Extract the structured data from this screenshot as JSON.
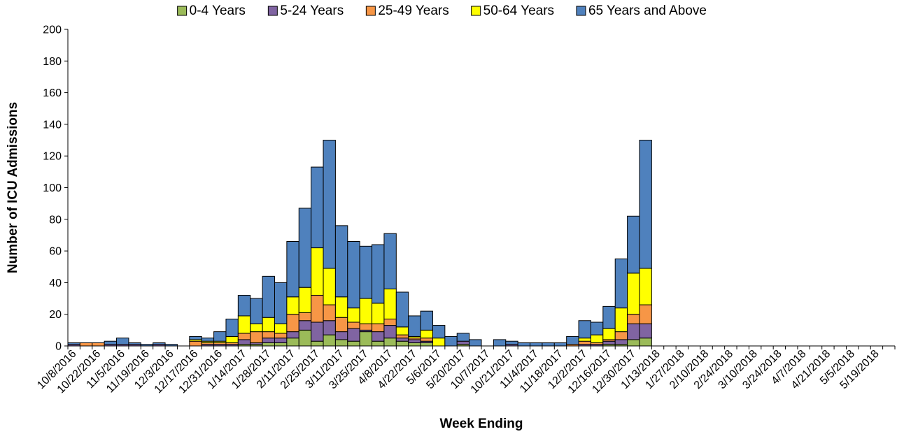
{
  "chart_data": {
    "type": "bar",
    "stacked": true,
    "xlabel": "Week Ending",
    "ylabel": "Number of ICU Admissions",
    "ylim": [
      0,
      200
    ],
    "y_ticks": [
      0,
      20,
      40,
      60,
      80,
      100,
      120,
      140,
      160,
      180,
      200
    ],
    "legend_position": "top",
    "grid": false,
    "categories": [
      "10/8/2016",
      "10/15/2016",
      "10/22/2016",
      "10/29/2016",
      "11/5/2016",
      "11/12/2016",
      "11/19/2016",
      "11/26/2016",
      "12/3/2016",
      "12/10/2016",
      "12/17/2016",
      "12/24/2016",
      "12/31/2016",
      "1/7/2017",
      "1/14/2017",
      "1/21/2017",
      "1/28/2017",
      "2/4/2017",
      "2/11/2017",
      "2/18/2017",
      "2/25/2017",
      "3/4/2017",
      "3/11/2017",
      "3/18/2017",
      "3/25/2017",
      "4/1/2017",
      "4/8/2017",
      "4/15/2017",
      "4/22/2017",
      "4/29/2017",
      "5/6/2017",
      "5/13/2017",
      "5/20/2017",
      "5/27/2017",
      "10/7/2017",
      "10/14/2017",
      "10/21/2017",
      "10/28/2017",
      "11/4/2017",
      "11/11/2017",
      "11/18/2017",
      "11/25/2017",
      "12/2/2017",
      "12/9/2017",
      "12/16/2017",
      "12/23/2017",
      "12/30/2017",
      "1/6/2018",
      "1/13/2018",
      "1/20/2018",
      "1/27/2018",
      "2/3/2018",
      "2/10/2018",
      "2/17/2018",
      "2/24/2018",
      "3/3/2018",
      "3/10/2018",
      "3/17/2018",
      "3/24/2018",
      "3/31/2018",
      "4/7/2018",
      "4/14/2018",
      "4/21/2018",
      "4/28/2018",
      "5/5/2018",
      "5/12/2018",
      "5/19/2018",
      "5/26/2018"
    ],
    "tick_labels": [
      "10/8/2016",
      "10/22/2016",
      "11/5/2016",
      "11/19/2016",
      "12/3/2016",
      "12/17/2016",
      "12/31/2016",
      "1/14/2017",
      "1/28/2017",
      "2/11/2017",
      "2/25/2017",
      "3/11/2017",
      "3/25/2017",
      "4/8/2017",
      "4/22/2017",
      "5/6/2017",
      "5/20/2017",
      "10/7/2017",
      "10/21/2017",
      "11/4/2017",
      "11/18/2017",
      "12/2/2017",
      "12/16/2017",
      "12/30/2017",
      "1/13/2018",
      "1/27/2018",
      "2/10/2018",
      "2/24/2018",
      "3/10/2018",
      "3/24/2018",
      "4/7/2018",
      "4/21/2018",
      "5/5/2018",
      "5/19/2018"
    ],
    "series": [
      {
        "name": "0-4 Years",
        "color": "#9bbb59",
        "values": [
          0,
          0,
          0,
          0,
          0,
          0,
          0,
          0,
          0,
          0,
          0,
          0,
          0,
          0,
          1,
          1,
          2,
          2,
          5,
          10,
          3,
          7,
          4,
          3,
          9,
          3,
          5,
          3,
          2,
          2,
          0,
          0,
          1,
          0,
          0,
          0,
          0,
          0,
          0,
          0,
          0,
          0,
          0,
          0,
          1,
          1,
          4,
          5,
          0,
          0,
          0,
          0,
          0,
          0,
          0,
          0,
          0,
          0,
          0,
          0,
          0,
          0,
          0,
          0,
          0,
          0,
          0,
          0
        ]
      },
      {
        "name": "5-24 Years",
        "color": "#8064a2",
        "values": [
          1,
          0,
          0,
          1,
          1,
          1,
          0,
          1,
          0,
          0,
          0,
          1,
          1,
          1,
          3,
          1,
          3,
          3,
          4,
          6,
          12,
          9,
          5,
          8,
          1,
          6,
          8,
          2,
          2,
          1,
          0,
          0,
          2,
          0,
          0,
          0,
          1,
          0,
          0,
          0,
          0,
          0,
          1,
          1,
          2,
          3,
          10,
          9,
          0,
          0,
          0,
          0,
          0,
          0,
          0,
          0,
          0,
          0,
          0,
          0,
          0,
          0,
          0,
          0,
          0,
          0,
          0,
          0
        ]
      },
      {
        "name": "25-49 Years",
        "color": "#f79646",
        "values": [
          0,
          2,
          2,
          0,
          0,
          0,
          0,
          0,
          0,
          0,
          3,
          1,
          1,
          1,
          4,
          7,
          4,
          3,
          11,
          5,
          17,
          10,
          9,
          4,
          4,
          5,
          4,
          2,
          1,
          2,
          0,
          0,
          0,
          0,
          0,
          0,
          0,
          0,
          0,
          0,
          0,
          1,
          2,
          1,
          1,
          5,
          6,
          12,
          0,
          0,
          0,
          0,
          0,
          0,
          0,
          0,
          0,
          0,
          0,
          0,
          0,
          0,
          0,
          0,
          0,
          0,
          0,
          0
        ]
      },
      {
        "name": "50-64 Years",
        "color": "#ffff00",
        "values": [
          0,
          0,
          0,
          0,
          0,
          0,
          0,
          0,
          0,
          0,
          1,
          1,
          1,
          4,
          11,
          5,
          9,
          6,
          11,
          16,
          30,
          23,
          13,
          9,
          16,
          13,
          19,
          5,
          1,
          5,
          5,
          0,
          0,
          0,
          0,
          0,
          0,
          0,
          0,
          0,
          0,
          0,
          2,
          5,
          7,
          15,
          26,
          23,
          0,
          0,
          0,
          0,
          0,
          0,
          0,
          0,
          0,
          0,
          0,
          0,
          0,
          0,
          0,
          0,
          0,
          0,
          0,
          0
        ]
      },
      {
        "name": "65 Years and Above",
        "color": "#4f81bd",
        "values": [
          1,
          0,
          0,
          2,
          4,
          1,
          1,
          1,
          1,
          0,
          2,
          2,
          6,
          11,
          13,
          16,
          26,
          26,
          35,
          50,
          51,
          81,
          45,
          42,
          33,
          37,
          35,
          22,
          13,
          12,
          8,
          6,
          5,
          4,
          0,
          4,
          2,
          2,
          2,
          2,
          2,
          5,
          11,
          8,
          14,
          31,
          36,
          81,
          0,
          0,
          0,
          0,
          0,
          0,
          0,
          0,
          0,
          0,
          0,
          0,
          0,
          0,
          0,
          0,
          0,
          0,
          0,
          0
        ]
      }
    ]
  }
}
